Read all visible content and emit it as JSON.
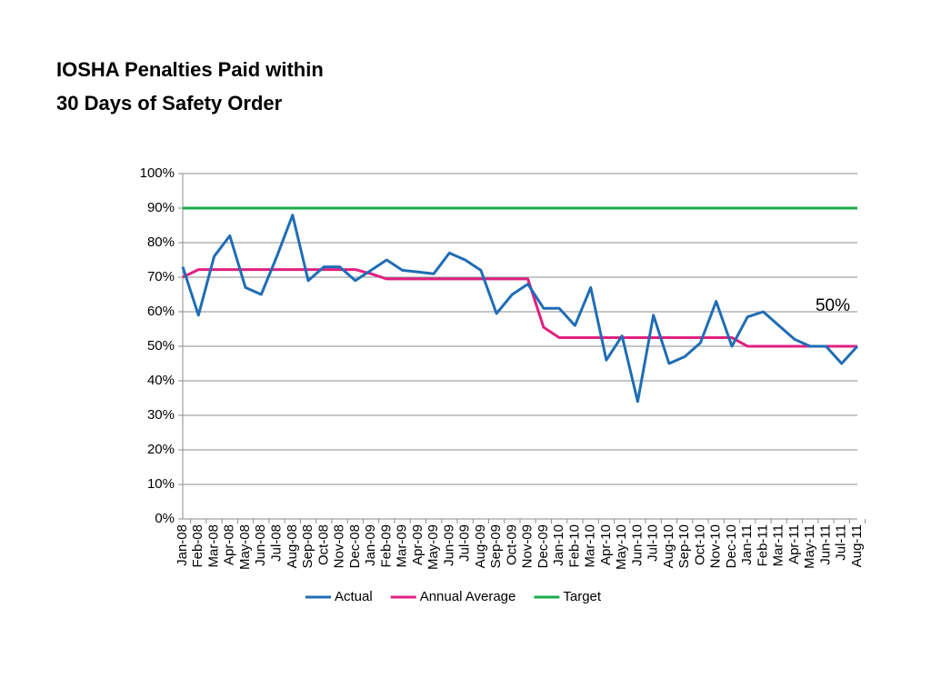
{
  "chart_data": {
    "type": "line",
    "title": "IOSHA Penalties Paid within 30 Days of Safety Order",
    "categories": [
      "Jan-08",
      "Feb-08",
      "Mar-08",
      "Apr-08",
      "May-08",
      "Jun-08",
      "Jul-08",
      "Aug-08",
      "Sep-08",
      "Oct-08",
      "Nov-08",
      "Dec-08",
      "Jan-09",
      "Feb-09",
      "Mar-09",
      "Apr-09",
      "May-09",
      "Jun-09",
      "Jul-09",
      "Aug-09",
      "Sep-09",
      "Oct-09",
      "Nov-09",
      "Dec-09",
      "Jan-10",
      "Feb-10",
      "Mar-10",
      "Apr-10",
      "May-10",
      "Jun-10",
      "Jul-10",
      "Aug-10",
      "Sep-10",
      "Oct-10",
      "Nov-10",
      "Dec-10",
      "Jan-11",
      "Feb-11",
      "Mar-11",
      "Apr-11",
      "May-11",
      "Jun-11",
      "Jul-11",
      "Aug-11"
    ],
    "series": [
      {
        "name": "Actual",
        "color": "#1f6db5",
        "values": [
          73,
          59,
          76,
          82,
          67,
          65,
          76,
          88,
          69,
          73,
          73,
          69,
          72,
          75,
          72,
          71.5,
          71,
          77,
          75,
          72,
          59.5,
          65,
          68,
          61,
          61,
          56,
          67,
          46,
          53,
          34,
          59,
          45,
          47,
          51,
          63,
          50,
          58.5,
          60,
          56,
          52,
          50,
          50,
          45,
          50
        ]
      },
      {
        "name": "Annual Average",
        "color": "#e0207f",
        "values": [
          70,
          72.2,
          72.2,
          72.2,
          72.2,
          72.2,
          72.2,
          72.2,
          72.2,
          72.2,
          72.2,
          72.2,
          71,
          69.5,
          69.5,
          69.5,
          69.5,
          69.5,
          69.5,
          69.5,
          69.5,
          69.5,
          69.5,
          55.5,
          52.5,
          52.5,
          52.5,
          52.5,
          52.5,
          52.5,
          52.5,
          52.5,
          52.5,
          52.5,
          52.5,
          52.5,
          50,
          50,
          50,
          50,
          50,
          50,
          50,
          50
        ]
      },
      {
        "name": "Target",
        "color": "#1aaa4a",
        "values": [
          90,
          90,
          90,
          90,
          90,
          90,
          90,
          90,
          90,
          90,
          90,
          90,
          90,
          90,
          90,
          90,
          90,
          90,
          90,
          90,
          90,
          90,
          90,
          90,
          90,
          90,
          90,
          90,
          90,
          90,
          90,
          90,
          90,
          90,
          90,
          90,
          90,
          90,
          90,
          90,
          90,
          90,
          90,
          90
        ]
      }
    ],
    "ylim": [
      0,
      100
    ],
    "yticks": [
      {
        "value": 0,
        "label": "0%"
      },
      {
        "value": 10,
        "label": "10%"
      },
      {
        "value": 20,
        "label": "20%"
      },
      {
        "value": 30,
        "label": "30%"
      },
      {
        "value": 40,
        "label": "40%"
      },
      {
        "value": 50,
        "label": "50%"
      },
      {
        "value": 60,
        "label": "60%"
      },
      {
        "value": 70,
        "label": "70%"
      },
      {
        "value": 80,
        "label": "80%"
      },
      {
        "value": 90,
        "label": "90%"
      },
      {
        "value": 100,
        "label": "100%"
      }
    ],
    "grid": true,
    "legend": "bottom",
    "annotation": "50%"
  }
}
